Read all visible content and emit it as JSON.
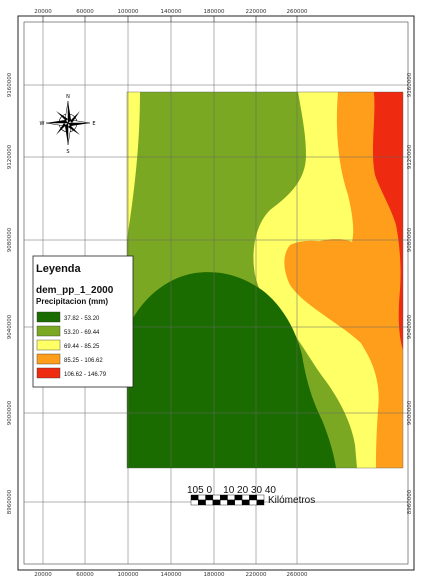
{
  "map": {
    "x_ticks": [
      "20000",
      "60000",
      "100000",
      "140000",
      "180000",
      "220000",
      "260000"
    ],
    "y_ticks": [
      "9160000",
      "9120000",
      "9080000",
      "9040000",
      "9000000",
      "8960000"
    ],
    "colors": {
      "class1": "#1a6b00",
      "class2": "#7ba822",
      "class3": "#ffff66",
      "class4": "#ff9e1a",
      "class5": "#ee2a10"
    }
  },
  "legend": {
    "title": "Leyenda",
    "layer": "dem_pp_1_2000",
    "unit": "Precipitacion (mm)",
    "items": [
      {
        "label": "37.82 - 53.20",
        "color": "#1a6b00"
      },
      {
        "label": "53.20 - 69.44",
        "color": "#7ba822"
      },
      {
        "label": "69.44 - 85.25",
        "color": "#ffff66"
      },
      {
        "label": "85.25 - 106.62",
        "color": "#ff9e1a"
      },
      {
        "label": "106.62 - 146.79",
        "color": "#ee2a10"
      }
    ]
  },
  "scale": {
    "numbers": "105 0    10 20 30 40",
    "unit": "Kilómetros"
  },
  "compass": {
    "n": "N",
    "s": "S",
    "e": "E",
    "w": "W"
  }
}
